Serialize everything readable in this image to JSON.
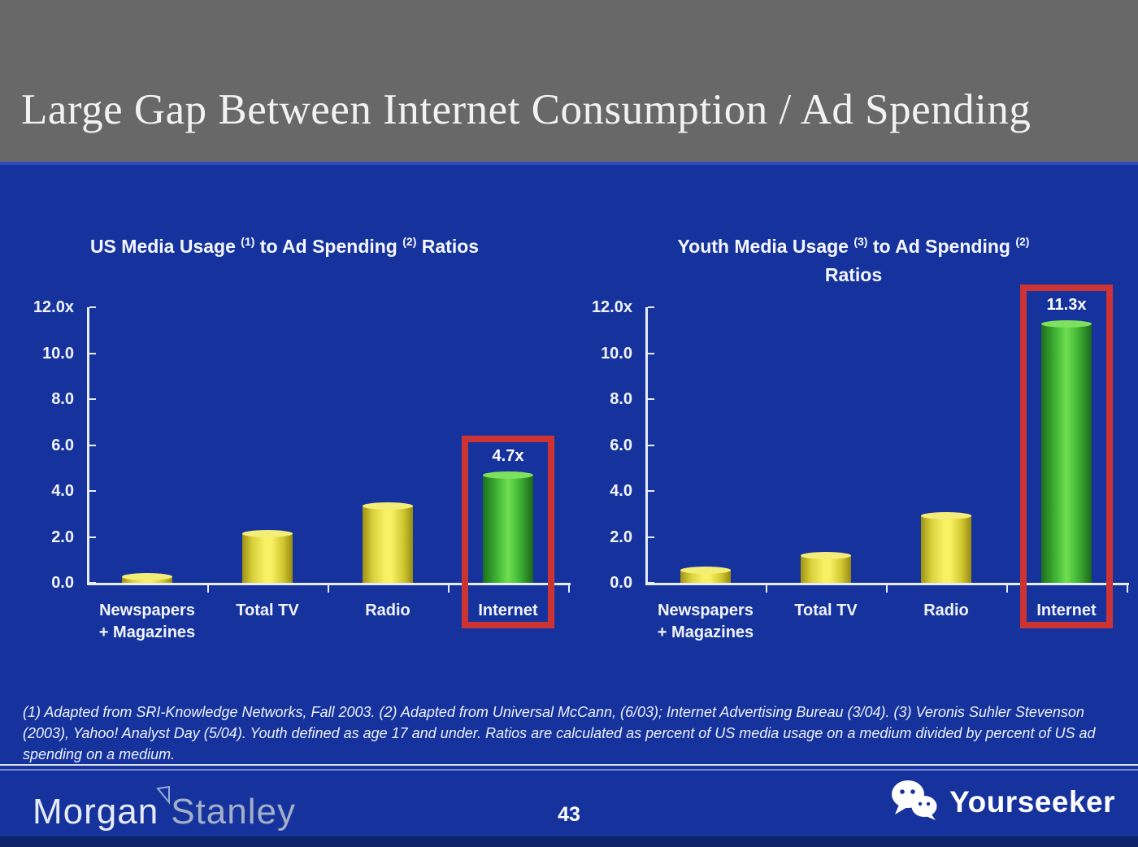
{
  "slide": {
    "title": "Large Gap Between Internet Consumption / Ad Spending",
    "footnote": "(1) Adapted from SRI-Knowledge Networks, Fall 2003.  (2) Adapted from Universal McCann, (6/03); Internet Advertising Bureau (3/04). (3) Veronis Suhler Stevenson (2003), Yahoo! Analyst Day (5/04).  Youth defined as age 17 and under.  Ratios are calculated as percent of US media usage on a medium divided by percent of US ad spending on a medium."
  },
  "footer": {
    "brand_word1": "Morgan",
    "brand_word2": "Stanley",
    "brand_icon": "triangle-flag-icon",
    "page_number": "43",
    "watermark_label": "Yourseeker",
    "watermark_icon": "wechat-icon"
  },
  "colors": {
    "header_gray": "#686868",
    "background_blue": "#16339d",
    "bar_yellow": "#f2ec5c",
    "bar_green": "#5ed24a",
    "highlight_red": "#cc3333",
    "text_white": "#f5f5f5",
    "bottom_strip": "#0e2368"
  },
  "chart_data": [
    {
      "type": "bar",
      "title": {
        "pre": "US Media Usage",
        "sup1": "(1)",
        "mid": "to Ad Spending",
        "sup2": "(2)",
        "post": "Ratios",
        "two_line": false
      },
      "title_text": "US Media Usage (1) to Ad Spending (2) Ratios",
      "categories": [
        "Newspapers + Magazines",
        "Total TV",
        "Radio",
        "Internet"
      ],
      "categories_display": [
        "Newspapers\n+ Magazines",
        "Total TV",
        "Radio",
        "Internet"
      ],
      "values": [
        0.3,
        2.15,
        3.35,
        4.7
      ],
      "bar_color_names": [
        "yellow",
        "yellow",
        "yellow",
        "green"
      ],
      "highlight_index": 3,
      "highlight_label": "4.7x",
      "highlight_box_color": "#cc3333",
      "y_ticks": [
        "12.0x",
        "10.0",
        "8.0",
        "6.0",
        "4.0",
        "2.0",
        "0.0"
      ],
      "ylim": [
        0,
        12
      ],
      "xlabel": "",
      "ylabel": "",
      "grid": false,
      "legend": "none"
    },
    {
      "type": "bar",
      "title": {
        "pre": "Youth Media Usage",
        "sup1": "(3)",
        "mid": "to Ad Spending",
        "sup2": "(2)",
        "post": "Ratios",
        "two_line": true
      },
      "title_text": "Youth Media Usage (3) to Ad Spending (2) Ratios",
      "categories": [
        "Newspapers + Magazines",
        "Total TV",
        "Radio",
        "Internet"
      ],
      "categories_display": [
        "Newspapers\n+ Magazines",
        "Total TV",
        "Radio",
        "Internet"
      ],
      "values": [
        0.55,
        1.2,
        2.95,
        11.3
      ],
      "bar_color_names": [
        "yellow",
        "yellow",
        "yellow",
        "green"
      ],
      "highlight_index": 3,
      "highlight_label": "11.3x",
      "highlight_box_color": "#cc3333",
      "y_ticks": [
        "12.0x",
        "10.0",
        "8.0",
        "6.0",
        "4.0",
        "2.0",
        "0.0"
      ],
      "ylim": [
        0,
        12
      ],
      "xlabel": "",
      "ylabel": "",
      "grid": false,
      "legend": "none"
    }
  ]
}
